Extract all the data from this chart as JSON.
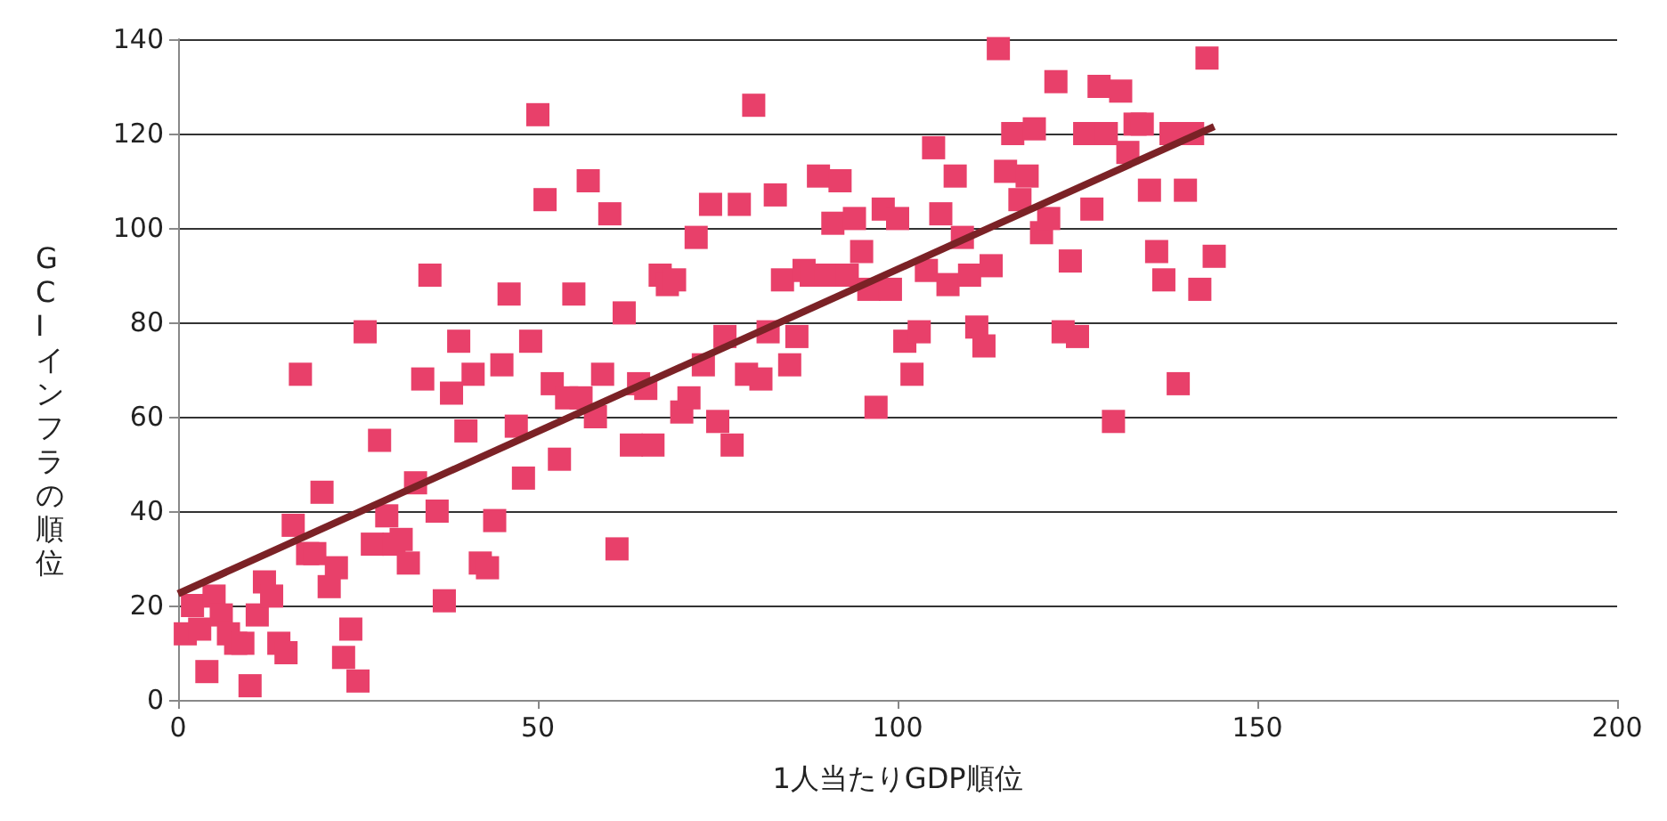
{
  "chart_data": {
    "type": "scatter",
    "xlabel": "1人当たりGDP順位",
    "ylabel": "GCIインフラの順位",
    "xlim": [
      0,
      200
    ],
    "xticks": [
      0,
      50,
      100,
      150,
      200
    ],
    "ylim": [
      0,
      140
    ],
    "yticks": [
      0,
      20,
      40,
      60,
      80,
      100,
      120,
      140
    ],
    "grid": "y",
    "marker": "square",
    "series": [
      {
        "color": "#e8406a",
        "x": [
          1,
          2,
          3,
          4,
          5,
          6,
          7,
          8,
          9,
          10,
          11,
          12,
          13,
          14,
          15,
          16,
          17,
          18,
          19,
          20,
          21,
          22,
          23,
          24,
          25,
          26,
          27,
          28,
          29,
          30,
          31,
          32,
          33,
          34,
          35,
          36,
          37,
          38,
          39,
          40,
          41,
          42,
          43,
          44,
          45,
          46,
          47,
          48,
          49,
          50,
          51,
          52,
          53,
          54,
          55,
          56,
          57,
          58,
          59,
          60,
          61,
          62,
          63,
          64,
          65,
          66,
          67,
          68,
          69,
          70,
          71,
          72,
          73,
          74,
          75,
          76,
          77,
          78,
          79,
          80,
          81,
          82,
          83,
          84,
          85,
          86,
          87,
          88,
          89,
          90,
          91,
          92,
          93,
          94,
          95,
          96,
          97,
          98,
          99,
          100,
          101,
          102,
          103,
          104,
          105,
          106,
          107,
          108,
          109,
          110,
          111,
          112,
          113,
          114,
          115,
          116,
          117,
          118,
          119,
          120,
          121,
          122,
          123,
          124,
          125,
          126,
          127,
          128,
          129,
          130,
          131,
          132,
          133,
          134,
          135,
          136,
          137,
          138,
          139,
          140,
          141,
          142,
          143,
          144
        ],
        "values": [
          14,
          20,
          15,
          6,
          22,
          18,
          14,
          12,
          12,
          3,
          18,
          25,
          22,
          12,
          10,
          37,
          69,
          31,
          31,
          44,
          24,
          28,
          9,
          15,
          4,
          78,
          33,
          55,
          39,
          33,
          34,
          29,
          46,
          68,
          90,
          40,
          21,
          65,
          76,
          57,
          69,
          29,
          28,
          38,
          71,
          86,
          58,
          47,
          76,
          124,
          106,
          67,
          51,
          64,
          86,
          64,
          110,
          60,
          69,
          103,
          32,
          82,
          54,
          67,
          66,
          54,
          90,
          88,
          89,
          61,
          64,
          98,
          71,
          105,
          59,
          77,
          54,
          105,
          69,
          126,
          68,
          78,
          107,
          89,
          71,
          77,
          91,
          90,
          111,
          90,
          101,
          110,
          90,
          102,
          95,
          87,
          62,
          104,
          87,
          102,
          76,
          69,
          78,
          91,
          117,
          103,
          88,
          111,
          98,
          90,
          79,
          75,
          92,
          138,
          112,
          120,
          106,
          111,
          121,
          99,
          102,
          131,
          78,
          93,
          77,
          120,
          104,
          130,
          120,
          59,
          129,
          116,
          122,
          122,
          108,
          95,
          89,
          120,
          67,
          108,
          120,
          87,
          136,
          94
        ]
      },
      {
        "type": "line",
        "color": "#7b2226",
        "marker": "none",
        "x": [
          0,
          144
        ],
        "values": [
          22.5,
          121.5
        ]
      }
    ]
  }
}
